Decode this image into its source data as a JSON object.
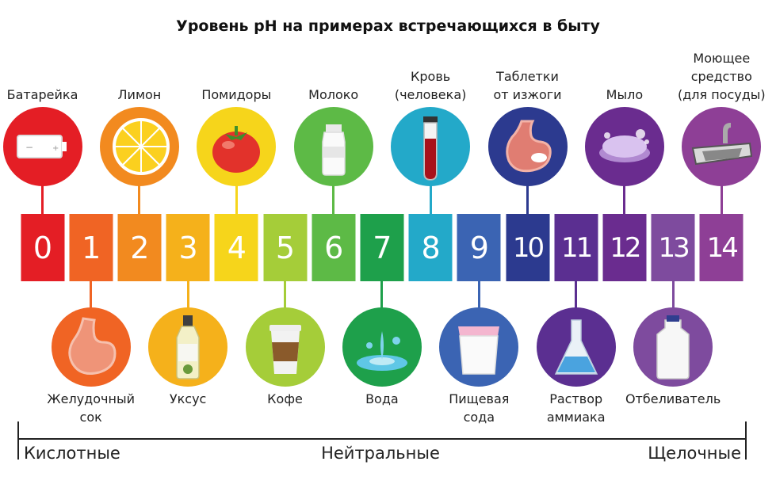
{
  "title": "Уровень pH на примерах встречающихся в быту",
  "ph_values": [
    "0",
    "1",
    "2",
    "3",
    "4",
    "5",
    "6",
    "7",
    "8",
    "9",
    "10",
    "11",
    "12",
    "13",
    "14"
  ],
  "colors": [
    "#e41e25",
    "#f06424",
    "#f28a1f",
    "#f5b11b",
    "#f6d51b",
    "#a5cd39",
    "#5dba46",
    "#1ea04b",
    "#23a9c9",
    "#3b64b3",
    "#2c3a8f",
    "#5b2f91",
    "#6a2c8f",
    "#7e4b9e",
    "#8e3f96"
  ],
  "top_examples": [
    {
      "ph": 0,
      "lines": [
        "Батарейка"
      ],
      "icon": "battery-icon"
    },
    {
      "ph": 2,
      "lines": [
        "Лимон"
      ],
      "icon": "lemon-icon"
    },
    {
      "ph": 4,
      "lines": [
        "Помидоры"
      ],
      "icon": "tomato-icon"
    },
    {
      "ph": 6,
      "lines": [
        "Молоко"
      ],
      "icon": "milk-bottle-icon"
    },
    {
      "ph": 8,
      "lines": [
        "Кровь",
        "(человека)"
      ],
      "icon": "blood-test-tube-icon"
    },
    {
      "ph": 10,
      "lines": [
        "Таблетки",
        "от изжоги"
      ],
      "icon": "stomach-pill-icon"
    },
    {
      "ph": 12,
      "lines": [
        "Мыло"
      ],
      "icon": "soap-icon"
    },
    {
      "ph": 14,
      "lines": [
        "Моющее",
        "средство",
        "(для посуды)"
      ],
      "icon": "sink-icon"
    }
  ],
  "bottom_examples": [
    {
      "ph": 1,
      "lines": [
        "Желудочный",
        "сок"
      ],
      "icon": "stomach-icon"
    },
    {
      "ph": 3,
      "lines": [
        "Уксус"
      ],
      "icon": "vinegar-bottle-icon"
    },
    {
      "ph": 5,
      "lines": [
        "Кофе"
      ],
      "icon": "coffee-cup-icon"
    },
    {
      "ph": 7,
      "lines": [
        "Вода"
      ],
      "icon": "water-splash-icon"
    },
    {
      "ph": 9,
      "lines": [
        "Пищевая",
        "сода"
      ],
      "icon": "baking-soda-icon"
    },
    {
      "ph": 11,
      "lines": [
        "Раствор",
        "аммиака"
      ],
      "icon": "flask-icon"
    },
    {
      "ph": 13,
      "lines": [
        "Отбеливатель"
      ],
      "icon": "bleach-jug-icon"
    }
  ],
  "scale": {
    "acid": "Кислотные",
    "neutral": "Нейтральные",
    "alkaline": "Щелочные"
  }
}
